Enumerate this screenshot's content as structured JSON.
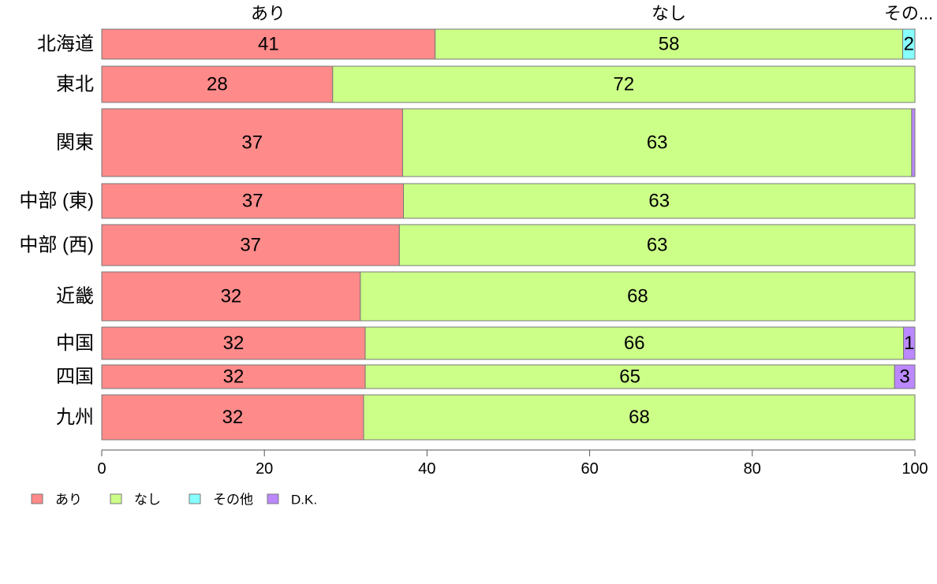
{
  "chart_data": {
    "type": "bar",
    "orientation": "horizontal",
    "stacked": true,
    "categories": [
      "北海道",
      "東北",
      "関東",
      "中部 (東)",
      "中部 (西)",
      "近畿",
      "中国",
      "四国",
      "九州"
    ],
    "series": [
      {
        "name": "あり",
        "color": "#FF8A8A",
        "values": [
          41,
          28.4,
          37,
          37.1,
          36.6,
          31.8,
          32.4,
          32.4,
          32.2
        ]
      },
      {
        "name": "なし",
        "color": "#CCFF88",
        "values": [
          57.5,
          71.6,
          62.6,
          62.9,
          63.4,
          68.2,
          66.2,
          65.1,
          67.8
        ]
      },
      {
        "name": "その他",
        "color": "#88FFFF",
        "values": [
          1.5,
          0,
          0,
          0,
          0,
          0,
          0,
          0,
          0
        ]
      },
      {
        "name": "D.K.",
        "color": "#BB88FF",
        "values": [
          0,
          0,
          0.4,
          0,
          0,
          0,
          1.4,
          2.5,
          0
        ]
      }
    ],
    "data_labels": [
      [
        "41",
        "58",
        "2",
        ""
      ],
      [
        "28",
        "72",
        "",
        ""
      ],
      [
        "37",
        "63",
        "",
        ""
      ],
      [
        "37",
        "63",
        "",
        ""
      ],
      [
        "37",
        "63",
        "",
        ""
      ],
      [
        "32",
        "68",
        "",
        ""
      ],
      [
        "32",
        "66",
        "",
        "1"
      ],
      [
        "32",
        "65",
        "",
        "3"
      ],
      [
        "32",
        "68",
        "",
        ""
      ]
    ],
    "top_labels": [
      "あり",
      "なし",
      "その..."
    ],
    "xlim": [
      0,
      100
    ],
    "xticks": [
      0,
      20,
      40,
      60,
      80,
      100
    ],
    "tick_labels": [
      "0",
      "20",
      "40",
      "60",
      "80",
      "100"
    ],
    "legend": [
      "あり",
      "なし",
      "その他",
      "D.K."
    ],
    "legend_position": "bottom-left",
    "grid": false,
    "title": "",
    "xlabel": "",
    "ylabel": ""
  }
}
